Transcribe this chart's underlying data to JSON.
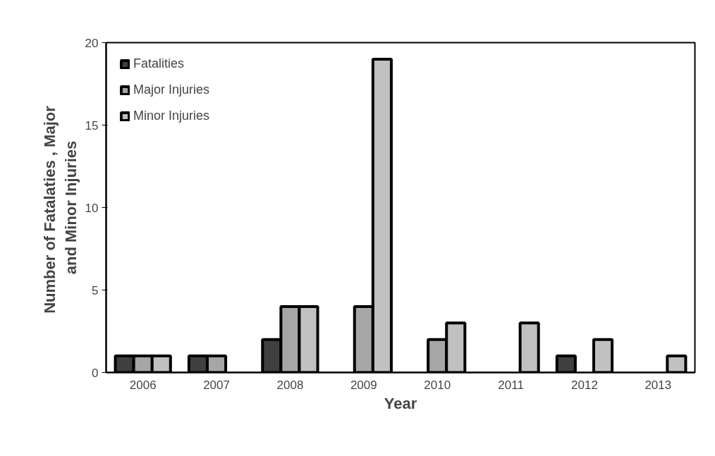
{
  "chart_data": {
    "type": "bar",
    "xlabel": "Year",
    "ylabel": "Number of Fatalaties ,  Major\nand Minor Injuries",
    "categories": [
      "2006",
      "2007",
      "2008",
      "2009",
      "2010",
      "2011",
      "2012",
      "2013"
    ],
    "series": [
      {
        "name": "Fatalities",
        "color": "#404040",
        "values": [
          1,
          1,
          2,
          null,
          null,
          null,
          1,
          null
        ]
      },
      {
        "name": "Major Injuries",
        "color": "#a6a6a6",
        "values": [
          1,
          1,
          4,
          4,
          2,
          null,
          null,
          null
        ]
      },
      {
        "name": "Minor Injuries",
        "color": "#c0c0c0",
        "values": [
          1,
          null,
          4,
          19,
          3,
          3,
          2,
          1
        ]
      }
    ],
    "ylim": [
      0,
      20
    ],
    "yticks": [
      0,
      5,
      10,
      15,
      20
    ],
    "grid": false,
    "legend": "top left"
  }
}
